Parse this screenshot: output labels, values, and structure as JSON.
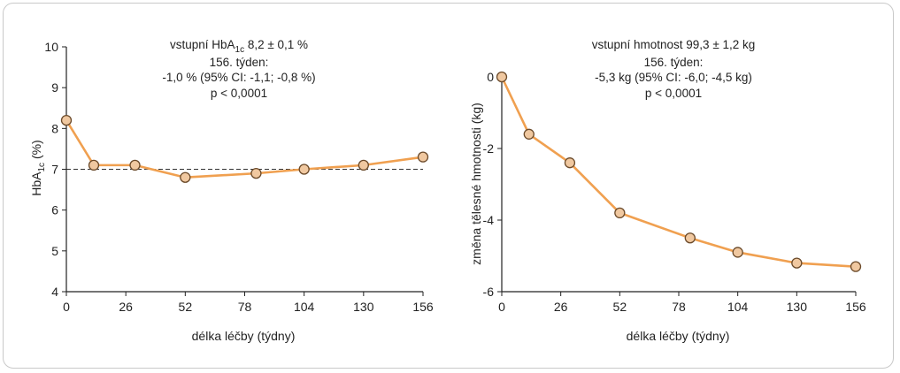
{
  "chart_data": [
    {
      "type": "line",
      "x": [
        0,
        12,
        30,
        52,
        83,
        104,
        130,
        156
      ],
      "series": [
        {
          "values": [
            8.2,
            7.1,
            7.1,
            6.8,
            6.9,
            7.0,
            7.1,
            7.3
          ]
        }
      ],
      "reference_line": {
        "y": 7,
        "style": "dashed"
      },
      "xticks": [
        "0",
        "26",
        "52",
        "78",
        "104",
        "130",
        "156"
      ],
      "xtick_values": [
        0,
        26,
        52,
        78,
        104,
        130,
        156
      ],
      "yticks": [
        "10",
        "9",
        "8",
        "7",
        "6",
        "5",
        "4"
      ],
      "ytick_values": [
        10,
        9,
        8,
        7,
        6,
        5,
        4
      ],
      "xlim": [
        0,
        156
      ],
      "ylim": [
        4,
        10
      ],
      "xlabel": "délka léčby (týdny)",
      "ylabel": {
        "pre": "HbA",
        "sub": "1c",
        "post": " (%)"
      },
      "annotation": {
        "line1": {
          "pre": "vstupní HbA",
          "sub": "1c",
          "post": " 8,2 ± 0,1 %"
        },
        "line2": "156. týden:",
        "line3": "-1,0 % (95% CI: -1,1; -0,8 %)",
        "line4": "p < 0,0001"
      }
    },
    {
      "type": "line",
      "x": [
        0,
        12,
        30,
        52,
        83,
        104,
        130,
        156
      ],
      "series": [
        {
          "values": [
            0.0,
            -1.6,
            -2.4,
            -3.8,
            -4.5,
            -4.9,
            -5.2,
            -5.3
          ]
        }
      ],
      "xticks": [
        "0",
        "26",
        "52",
        "78",
        "104",
        "130",
        "156"
      ],
      "xtick_values": [
        0,
        26,
        52,
        78,
        104,
        130,
        156
      ],
      "yticks": [
        "0",
        "-2",
        "-4",
        "-6"
      ],
      "ytick_values": [
        0,
        -2,
        -4,
        -6
      ],
      "xlim": [
        0,
        156
      ],
      "ylim": [
        -6,
        0
      ],
      "xlabel": "délka léčby (týdny)",
      "ylabel": "změna tělesné hmotnosti (kg)",
      "annotation": {
        "line1": "vstupní hmotnost 99,3 ± 1,2 kg",
        "line2": "156. týden:",
        "line3": "-5,3 kg (95% CI: -6,0; -4,5 kg)",
        "line4": "p < 0,0001"
      }
    }
  ],
  "colors": {
    "line": "#f0a050",
    "marker_fill": "#f0c8a0",
    "marker_stroke": "#6b4a2a",
    "axis": "#222222"
  }
}
